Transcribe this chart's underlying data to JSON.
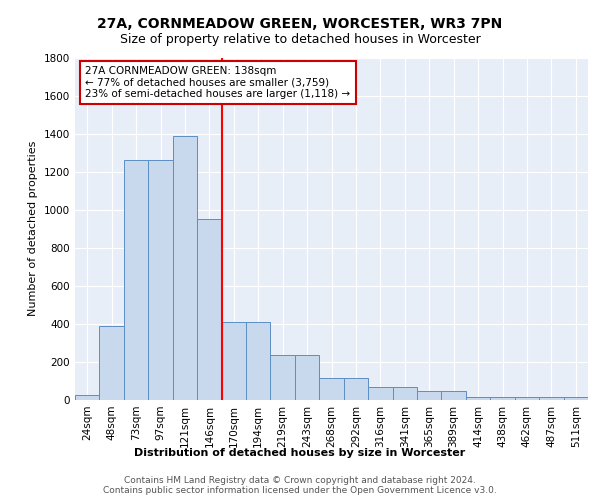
{
  "title": "27A, CORNMEADOW GREEN, WORCESTER, WR3 7PN",
  "subtitle": "Size of property relative to detached houses in Worcester",
  "xlabel": "Distribution of detached houses by size in Worcester",
  "ylabel": "Number of detached properties",
  "bin_labels": [
    "24sqm",
    "48sqm",
    "73sqm",
    "97sqm",
    "121sqm",
    "146sqm",
    "170sqm",
    "194sqm",
    "219sqm",
    "243sqm",
    "268sqm",
    "292sqm",
    "316sqm",
    "341sqm",
    "365sqm",
    "389sqm",
    "414sqm",
    "438sqm",
    "462sqm",
    "487sqm",
    "511sqm"
  ],
  "bar_values": [
    28,
    390,
    1260,
    1260,
    1390,
    950,
    410,
    410,
    235,
    235,
    115,
    115,
    70,
    70,
    45,
    45,
    18,
    18,
    18,
    15,
    15
  ],
  "bar_color": "#c9d9ed",
  "bar_edge_color": "#5b8ec5",
  "red_line_x": 5.5,
  "annotation_text": "27A CORNMEADOW GREEN: 138sqm\n← 77% of detached houses are smaller (3,759)\n23% of semi-detached houses are larger (1,118) →",
  "annotation_box_facecolor": "#ffffff",
  "annotation_box_edgecolor": "#cc0000",
  "footer_line1": "Contains HM Land Registry data © Crown copyright and database right 2024.",
  "footer_line2": "Contains public sector information licensed under the Open Government Licence v3.0.",
  "ylim": [
    0,
    1800
  ],
  "yticks": [
    0,
    200,
    400,
    600,
    800,
    1000,
    1200,
    1400,
    1600,
    1800
  ],
  "bg_color": "#e8eef8",
  "fig_bg_color": "#ffffff",
  "title_fontsize": 10,
  "subtitle_fontsize": 9,
  "ylabel_fontsize": 8,
  "tick_fontsize": 7.5,
  "xlabel_fontsize": 8,
  "annotation_fontsize": 7.5,
  "footer_fontsize": 6.5
}
